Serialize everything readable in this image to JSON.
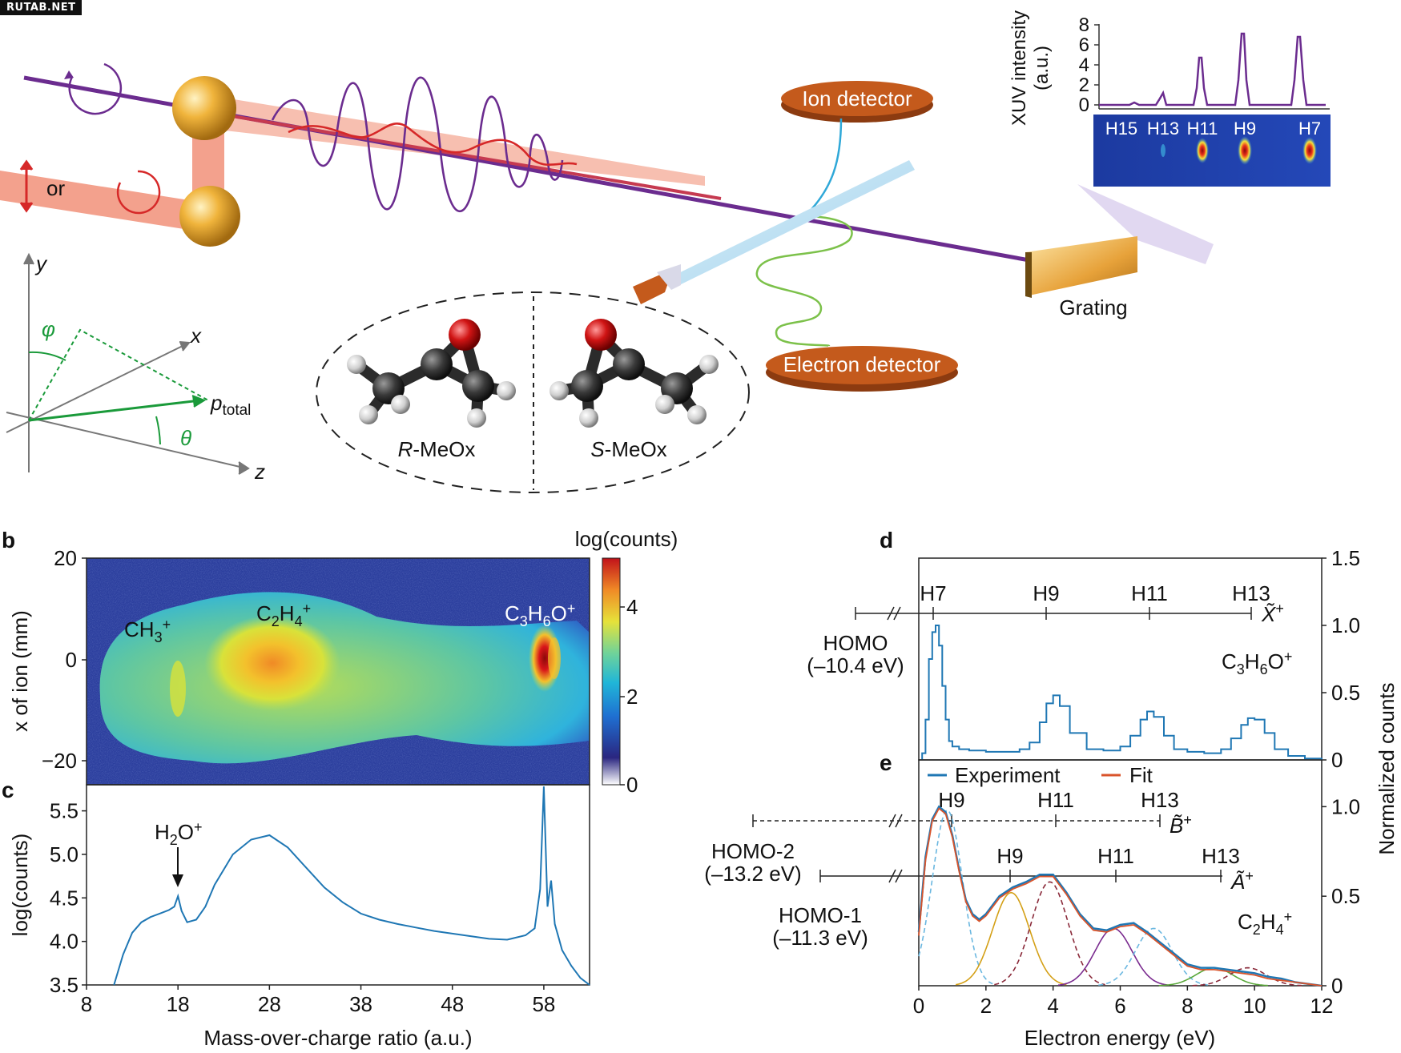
{
  "watermark": "RUTAB.NET",
  "panel_a": {
    "or_label": "or",
    "ion_detector": "Ion detector",
    "electron_detector": "Electron detector",
    "grating": "Grating",
    "molecule_r": "R",
    "molecule_s": "S",
    "molecule_suffix": "-MeOx",
    "axes": {
      "y": "y",
      "x": "x",
      "z": "z",
      "phi": "φ",
      "theta": "θ",
      "p": "p",
      "p_sub": "total"
    }
  },
  "xuv_inset": {
    "ylabel_line1": "XUV intensity",
    "ylabel_line2": "(a.u.)",
    "yticks": [
      "0",
      "2",
      "4",
      "6",
      "8"
    ],
    "harmonics": [
      "H15",
      "H13",
      "H11",
      "H9",
      "H7"
    ]
  },
  "panel_b": {
    "letter": "b",
    "ylabel": "x of ion (mm)",
    "yticks": [
      "20",
      "0",
      "−20"
    ],
    "colorbar_title": "log(counts)",
    "colorbar_ticks": [
      "4",
      "2",
      "0"
    ],
    "peaks": [
      "CH",
      "3",
      "+",
      "C",
      "2",
      "H",
      "4",
      "+",
      "C",
      "3",
      "H",
      "6",
      "O",
      "+"
    ]
  },
  "panel_c": {
    "letter": "c",
    "ylabel": "log(counts)",
    "xlabel": "Mass-over-charge ratio (a.u.)",
    "yticks": [
      "5.5",
      "5.0",
      "4.5",
      "4.0",
      "3.5"
    ],
    "xticks": [
      "8",
      "18",
      "28",
      "38",
      "48",
      "58"
    ],
    "annotation": [
      "H",
      "2",
      "O",
      "+"
    ]
  },
  "panel_d": {
    "letter": "d",
    "state": "X̃",
    "state_sup": "+",
    "orbital_line1": "HOMO",
    "orbital_line2": "(–10.4 eV)",
    "species": [
      "C",
      "3",
      "H",
      "6",
      "O",
      "+"
    ],
    "harmonics": [
      "H7",
      "H9",
      "H11",
      "H13"
    ],
    "yticks_right": [
      "1.5",
      "1.0",
      "0.5",
      "0"
    ]
  },
  "panel_e": {
    "letter": "e",
    "legend_experiment": "Experiment",
    "legend_fit": "Fit",
    "b_state": "B̃",
    "a_state": "Ã",
    "state_sup": "+",
    "homo2_line1": "HOMO-2",
    "homo2_line2": "(–13.2 eV)",
    "homo1_line1": "HOMO-1",
    "homo1_line2": "(–11.3 eV)",
    "harmonics_b": [
      "H9",
      "H11",
      "H13"
    ],
    "harmonics_a": [
      "H9",
      "H11",
      "H13"
    ],
    "species": [
      "C",
      "2",
      "H",
      "4",
      "+"
    ],
    "yticks_right": [
      "1.0",
      "0.5",
      "0"
    ],
    "xticks": [
      "0",
      "2",
      "4",
      "6",
      "8",
      "10",
      "12"
    ],
    "xlabel": "Electron energy (eV)",
    "ylabel_right": "Normalized counts"
  },
  "colors": {
    "xuv": "#6b2c8f",
    "laser": "#f08a70",
    "ir": "#d62828",
    "exp_line": "#1f77b4",
    "fit_line": "#d9542b",
    "detector": "#c45a1c",
    "green": "#1a9a3a",
    "gold": "#d4a017"
  },
  "chart_data": [
    {
      "type": "line",
      "xticks": [
        8,
        18,
        28,
        38,
        48,
        58
      ],
      "xlim": [
        8,
        63
      ],
      "ylim": [
        3.5,
        5.8
      ],
      "x": [
        11,
        12,
        13,
        14,
        15,
        16,
        17,
        17.6,
        18,
        18.4,
        19,
        20,
        21,
        22,
        24,
        26,
        28,
        30,
        32,
        34,
        36,
        38,
        40,
        42,
        44,
        46,
        48,
        50,
        52,
        54,
        56,
        57,
        57.6,
        58,
        58.4,
        58.8,
        59.2,
        59.6,
        60,
        61,
        62,
        63
      ],
      "y": [
        3.5,
        3.85,
        4.1,
        4.22,
        4.28,
        4.32,
        4.36,
        4.4,
        4.52,
        4.35,
        4.22,
        4.25,
        4.4,
        4.65,
        5.0,
        5.17,
        5.22,
        5.08,
        4.85,
        4.62,
        4.45,
        4.32,
        4.25,
        4.2,
        4.16,
        4.12,
        4.09,
        4.06,
        4.03,
        4.02,
        4.07,
        4.15,
        4.6,
        5.78,
        4.4,
        4.7,
        4.2,
        4.05,
        3.9,
        3.72,
        3.58,
        3.5
      ]
    },
    {
      "type": "line",
      "xlim": [
        0,
        12
      ],
      "ylim": [
        0,
        1.5
      ],
      "x": [
        0.1,
        0.2,
        0.3,
        0.4,
        0.5,
        0.6,
        0.7,
        0.8,
        0.9,
        1.0,
        1.2,
        1.5,
        2.0,
        2.5,
        3.0,
        3.3,
        3.6,
        3.8,
        4.0,
        4.2,
        4.5,
        5.0,
        5.5,
        6.0,
        6.3,
        6.6,
        6.8,
        7.0,
        7.3,
        7.6,
        8.0,
        8.5,
        9.0,
        9.3,
        9.6,
        9.8,
        10.0,
        10.3,
        10.6,
        11.0,
        11.5,
        12.0
      ],
      "y": [
        0.05,
        0.3,
        0.75,
        0.95,
        1.0,
        0.85,
        0.55,
        0.3,
        0.14,
        0.1,
        0.08,
        0.07,
        0.06,
        0.06,
        0.08,
        0.13,
        0.28,
        0.42,
        0.48,
        0.4,
        0.2,
        0.08,
        0.07,
        0.1,
        0.18,
        0.3,
        0.36,
        0.32,
        0.18,
        0.08,
        0.06,
        0.05,
        0.08,
        0.16,
        0.26,
        0.31,
        0.3,
        0.2,
        0.08,
        0.03,
        0.01,
        0.0
      ]
    },
    {
      "type": "line",
      "xlim": [
        0,
        12
      ],
      "ylim": [
        0,
        1.1
      ],
      "series": [
        {
          "name": "Experiment",
          "x": [
            0.0,
            0.2,
            0.4,
            0.6,
            0.8,
            1.0,
            1.2,
            1.4,
            1.6,
            1.8,
            2.0,
            2.4,
            2.8,
            3.2,
            3.6,
            4.0,
            4.4,
            4.8,
            5.2,
            5.6,
            6.0,
            6.4,
            6.8,
            7.2,
            7.6,
            8.0,
            8.4,
            8.8,
            9.2,
            9.6,
            10.0,
            10.4,
            10.8,
            11.2,
            11.6,
            12.0
          ],
          "y": [
            0.3,
            0.72,
            0.93,
            1.0,
            0.97,
            0.84,
            0.65,
            0.48,
            0.4,
            0.37,
            0.4,
            0.5,
            0.55,
            0.58,
            0.62,
            0.62,
            0.52,
            0.4,
            0.32,
            0.31,
            0.34,
            0.35,
            0.3,
            0.24,
            0.18,
            0.12,
            0.1,
            0.1,
            0.09,
            0.08,
            0.07,
            0.05,
            0.04,
            0.02,
            0.01,
            0.0
          ]
        },
        {
          "name": "Fit",
          "x": [
            0.0,
            0.2,
            0.4,
            0.6,
            0.8,
            1.0,
            1.2,
            1.4,
            1.6,
            1.8,
            2.0,
            2.4,
            2.8,
            3.2,
            3.6,
            4.0,
            4.4,
            4.8,
            5.2,
            5.6,
            6.0,
            6.4,
            6.8,
            7.2,
            7.6,
            8.0,
            8.4,
            8.8,
            9.2,
            9.6,
            10.0,
            10.4,
            10.8,
            11.2,
            11.6,
            12.0
          ],
          "y": [
            0.28,
            0.7,
            0.92,
            0.99,
            0.96,
            0.83,
            0.64,
            0.47,
            0.39,
            0.36,
            0.39,
            0.49,
            0.54,
            0.57,
            0.61,
            0.61,
            0.51,
            0.39,
            0.31,
            0.3,
            0.33,
            0.34,
            0.29,
            0.23,
            0.17,
            0.11,
            0.09,
            0.09,
            0.08,
            0.07,
            0.06,
            0.04,
            0.03,
            0.02,
            0.01,
            0.0
          ]
        }
      ]
    }
  ]
}
